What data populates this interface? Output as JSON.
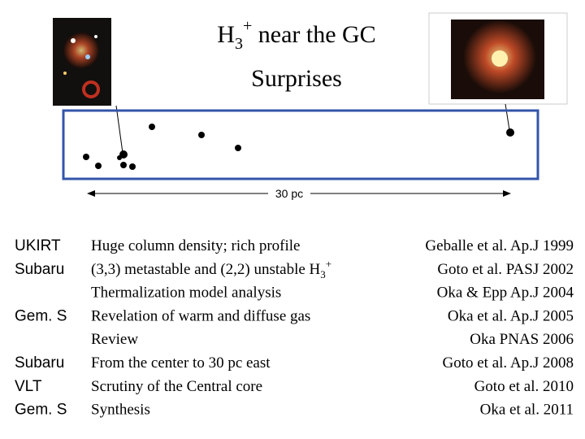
{
  "header": {
    "title": {
      "h": "H",
      "sub": "3",
      "sup": "+",
      "rest": " near the GC"
    },
    "subtitle": "Surprises"
  },
  "figure": {
    "scale_label": "30 pc"
  },
  "rows": [
    {
      "telescope": "UKIRT",
      "description": "Huge column density; rich profile",
      "reference": "Geballe et al. Ap.J 1999"
    },
    {
      "telescope": "Subaru",
      "description": "(3,3) metastable and (2,2) unstable H",
      "description_sub": "3",
      "description_sup": "+",
      "reference": "Goto et al. PASJ 2002"
    },
    {
      "description": "Thermalization model analysis",
      "reference": "Oka & Epp   Ap.J 2004"
    },
    {
      "telescope": "Gem. S",
      "description": "Revelation of warm and diffuse gas",
      "reference": "Oka et al.  Ap.J 2005"
    },
    {
      "description": "Review",
      "reference": "Oka  PNAS 2006"
    },
    {
      "telescope": "Subaru",
      "description": "From the center to 30 pc east",
      "reference": "Goto et al.  Ap.J 2008"
    },
    {
      "telescope": "VLT",
      "description": "Scrutiny of the Central core",
      "reference": "Goto et al.   2010"
    },
    {
      "telescope": "Gem. S",
      "description": "Synthesis",
      "reference": "Oka et al.   2011"
    }
  ]
}
